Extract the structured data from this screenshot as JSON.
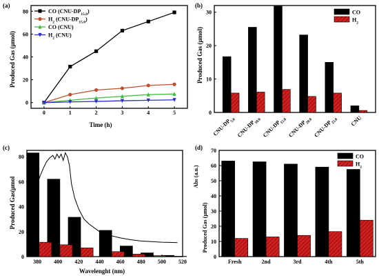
{
  "chart_data": [
    {
      "panel": "(a)",
      "type": "line",
      "xlabel": "Time (h)",
      "ylabel": "Produced Gas (μmol)",
      "xlim": [
        -0.5,
        5.5
      ],
      "ylim": [
        -5,
        85
      ],
      "xticks": [
        0,
        1,
        2,
        3,
        4,
        5
      ],
      "yticks": [
        0,
        20,
        40,
        60,
        80
      ],
      "legend_position": "top-left",
      "series": [
        {
          "name": "CO (CNU-DP15.0)",
          "label_main": "CO (CNU-DP",
          "label_sub": "15.0",
          "label_end": ")",
          "color": "#000000",
          "marker": "square",
          "x": [
            0,
            1,
            2,
            3,
            4,
            5
          ],
          "values": [
            0,
            31.5,
            45,
            63,
            71,
            79
          ]
        },
        {
          "name": "H2 (CNU-DP15.0)",
          "label_main": "H",
          "label_sub1": "2",
          "label_mid": " (CNU-DP",
          "label_sub": "15.0",
          "label_end": ")",
          "color": "#c0502d",
          "marker": "circle",
          "x": [
            0,
            1,
            2,
            3,
            4,
            5
          ],
          "values": [
            0,
            7,
            11,
            12.5,
            15,
            16
          ]
        },
        {
          "name": "CO (CNU)",
          "label_main": "CO (CNU)",
          "color": "#3dbb3d",
          "marker": "triangle-up",
          "x": [
            0,
            1,
            2,
            3,
            4,
            5
          ],
          "values": [
            0,
            2,
            4,
            5.5,
            7,
            7.5
          ]
        },
        {
          "name": "H2 (CNU)",
          "label_main": "H",
          "label_sub1": "2",
          "label_mid": " (CNU)",
          "color": "#2d2dc8",
          "marker": "triangle-down",
          "x": [
            0,
            1,
            2,
            3,
            4,
            5
          ],
          "values": [
            0,
            0.6,
            1,
            1.6,
            2,
            2.4
          ]
        }
      ]
    },
    {
      "panel": "(b)",
      "type": "bar",
      "ylabel": "Produced Gas (μmol)",
      "ylim": [
        0,
        32
      ],
      "yticks": [
        0,
        10,
        20,
        30
      ],
      "legend_position": "top-right",
      "categories": [
        {
          "main": "CNU-DP",
          "sub": "5.0"
        },
        {
          "main": "CNU-DP",
          "sub": "10.0"
        },
        {
          "main": "CNU-DP",
          "sub": "15.0"
        },
        {
          "main": "CNU-DP",
          "sub": "20.0"
        },
        {
          "main": "CNU-DP",
          "sub": "25.0"
        },
        {
          "main": "CNU",
          "sub": ""
        }
      ],
      "series": [
        {
          "name": "CO",
          "color": "#000000",
          "values": [
            16.7,
            25.5,
            31.8,
            23.2,
            15,
            2
          ]
        },
        {
          "name": "H2",
          "label_main": "H",
          "label_sub1": "2",
          "color": "#d41f1f",
          "values": [
            5.8,
            6.1,
            6.9,
            4.8,
            5.8,
            0.6
          ]
        }
      ]
    },
    {
      "panel": "(c)",
      "type": "bar",
      "xlabel": "Wavelenght (nm)",
      "ylabel": "Produced Gas(μmol",
      "xlim": [
        370,
        520
      ],
      "ylim": [
        0,
        85
      ],
      "xticks": [
        380,
        400,
        420,
        440,
        460,
        480,
        500,
        520
      ],
      "yticks": [
        0,
        20,
        40,
        60,
        80
      ],
      "co_values": [
        {
          "x": 380,
          "y": 83
        },
        {
          "x": 400,
          "y": 62
        },
        {
          "x": 420,
          "y": 31.5
        },
        {
          "x": 450,
          "y": 21
        },
        {
          "x": 470,
          "y": 8.5
        },
        {
          "x": 490,
          "y": 3
        },
        {
          "x": 510,
          "y": 1
        }
      ],
      "h2_values": [
        {
          "x": 380,
          "y": 11.5
        },
        {
          "x": 400,
          "y": 9.5
        },
        {
          "x": 420,
          "y": 7
        },
        {
          "x": 450,
          "y": 4
        },
        {
          "x": 470,
          "y": 2
        },
        {
          "x": 490,
          "y": 0.8
        },
        {
          "x": 510,
          "y": 0.3
        }
      ],
      "absorbance_curve": {
        "x": [
          377,
          380,
          383,
          386,
          389,
          392,
          395,
          397,
          399,
          401,
          403,
          405,
          407,
          409,
          411,
          413,
          416,
          420,
          425,
          430,
          440,
          450,
          460,
          470,
          480,
          490,
          500,
          510,
          515
        ],
        "y": [
          50,
          58,
          65,
          71,
          76,
          79,
          81,
          78,
          82,
          79,
          82,
          77,
          83,
          80,
          73,
          58,
          47,
          38,
          30,
          26,
          20,
          17,
          15,
          13.5,
          12.5,
          12,
          11.5,
          11.3,
          11.2
        ]
      }
    },
    {
      "panel": "(d)",
      "type": "bar",
      "ylabel": "Produced Gas (μmol)",
      "y2label": "Abs (a.u.)",
      "ylim": [
        0,
        70
      ],
      "yticks": [
        0,
        10,
        20,
        30,
        40,
        50,
        60,
        70
      ],
      "legend_position": "top-right",
      "categories": [
        "Fresh",
        "2nd",
        "3rd",
        "4th",
        "5th"
      ],
      "series": [
        {
          "name": "CO",
          "color": "#000000",
          "values": [
            63,
            62.5,
            61,
            59,
            57.5
          ]
        },
        {
          "name": "H2",
          "label_main": "H",
          "label_sub1": "2",
          "color": "#d41f1f",
          "values": [
            12,
            13,
            14,
            16.5,
            24
          ]
        }
      ]
    }
  ]
}
